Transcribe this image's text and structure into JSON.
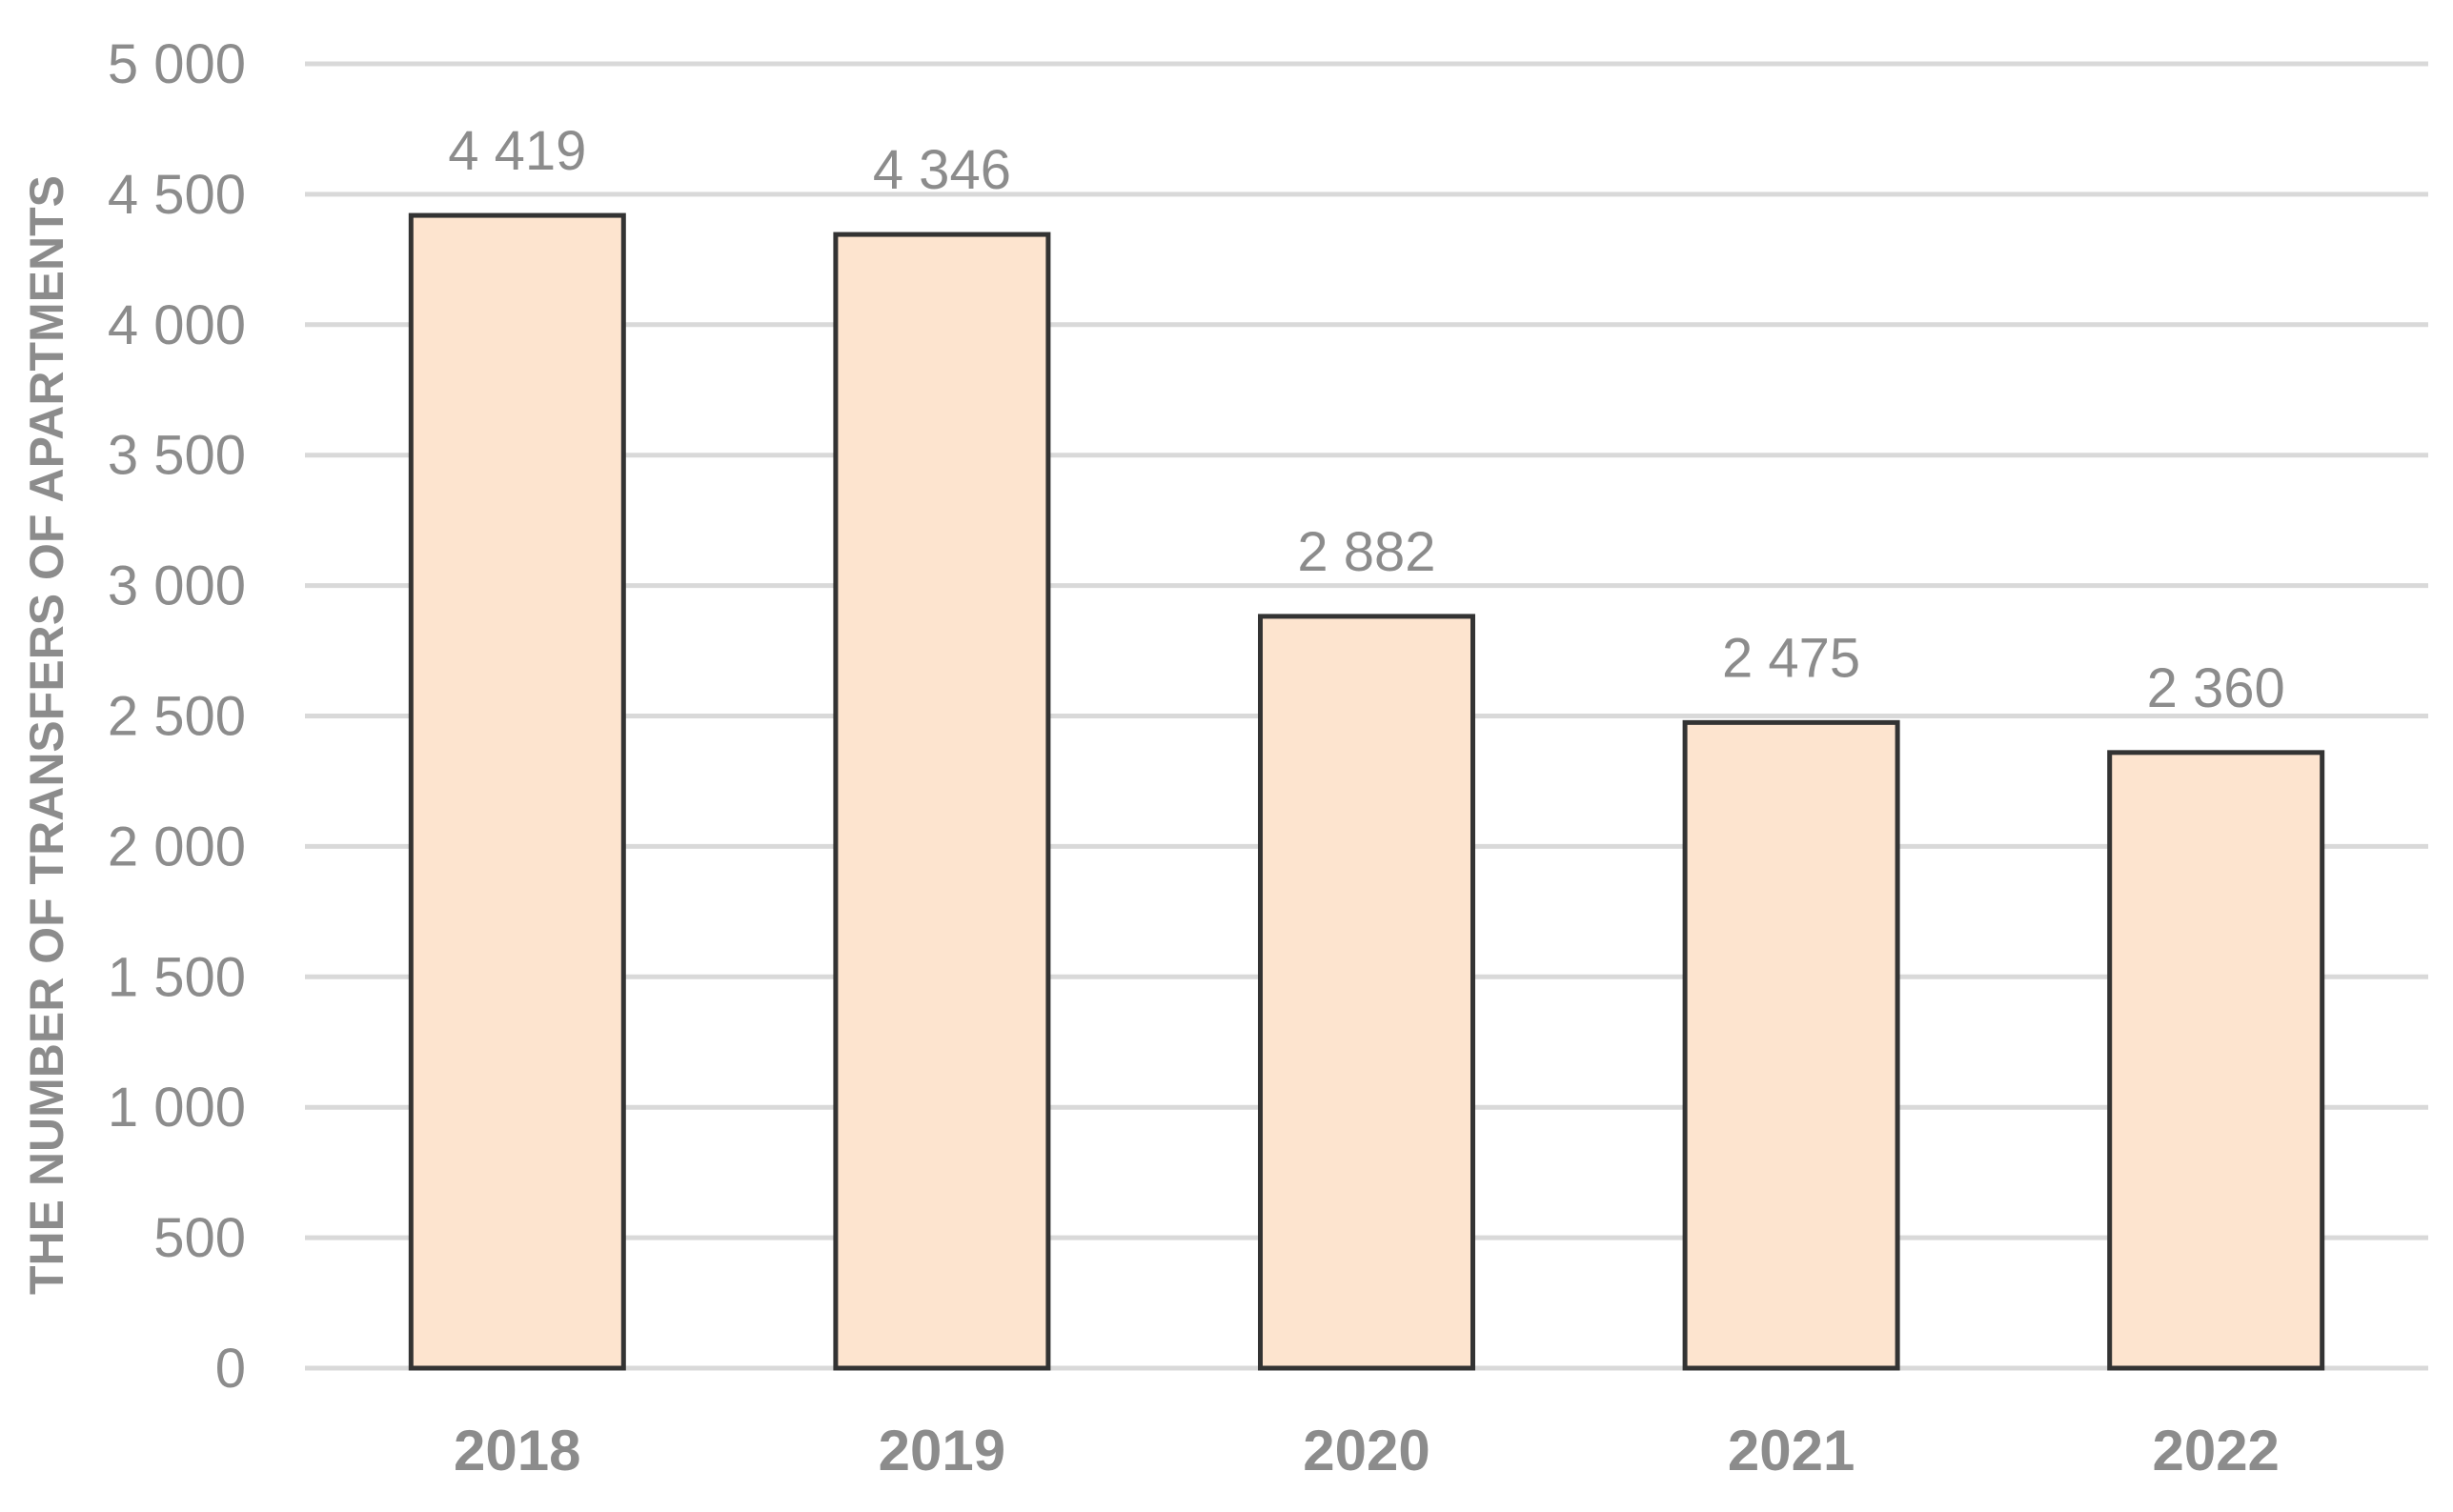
{
  "chart_data": {
    "type": "bar",
    "title": "",
    "xlabel": "",
    "ylabel": "THE NUMBER OF TRANSFERS OF APARTMENTS",
    "categories": [
      "2018",
      "2019",
      "2020",
      "2021",
      "2022"
    ],
    "values": [
      4419,
      4346,
      2882,
      2475,
      2360
    ],
    "data_labels": [
      "4 419",
      "4 346",
      "2 882",
      "2 475",
      "2 360"
    ],
    "ylim": [
      0,
      5000
    ],
    "yticks": [
      0,
      500,
      1000,
      1500,
      2000,
      2500,
      3000,
      3500,
      4000,
      4500,
      5000
    ],
    "ytick_labels": [
      "0",
      "500",
      "1 000",
      "1 500",
      "2 000",
      "2 500",
      "3 000",
      "3 500",
      "4 000",
      "4 500",
      "5 000"
    ],
    "grid": true,
    "legend": "none",
    "colors": {
      "bar_fill": "#fde4cf",
      "bar_stroke": "#333333",
      "grid": "#d9d9d9",
      "text": "#8c8c8c"
    }
  }
}
